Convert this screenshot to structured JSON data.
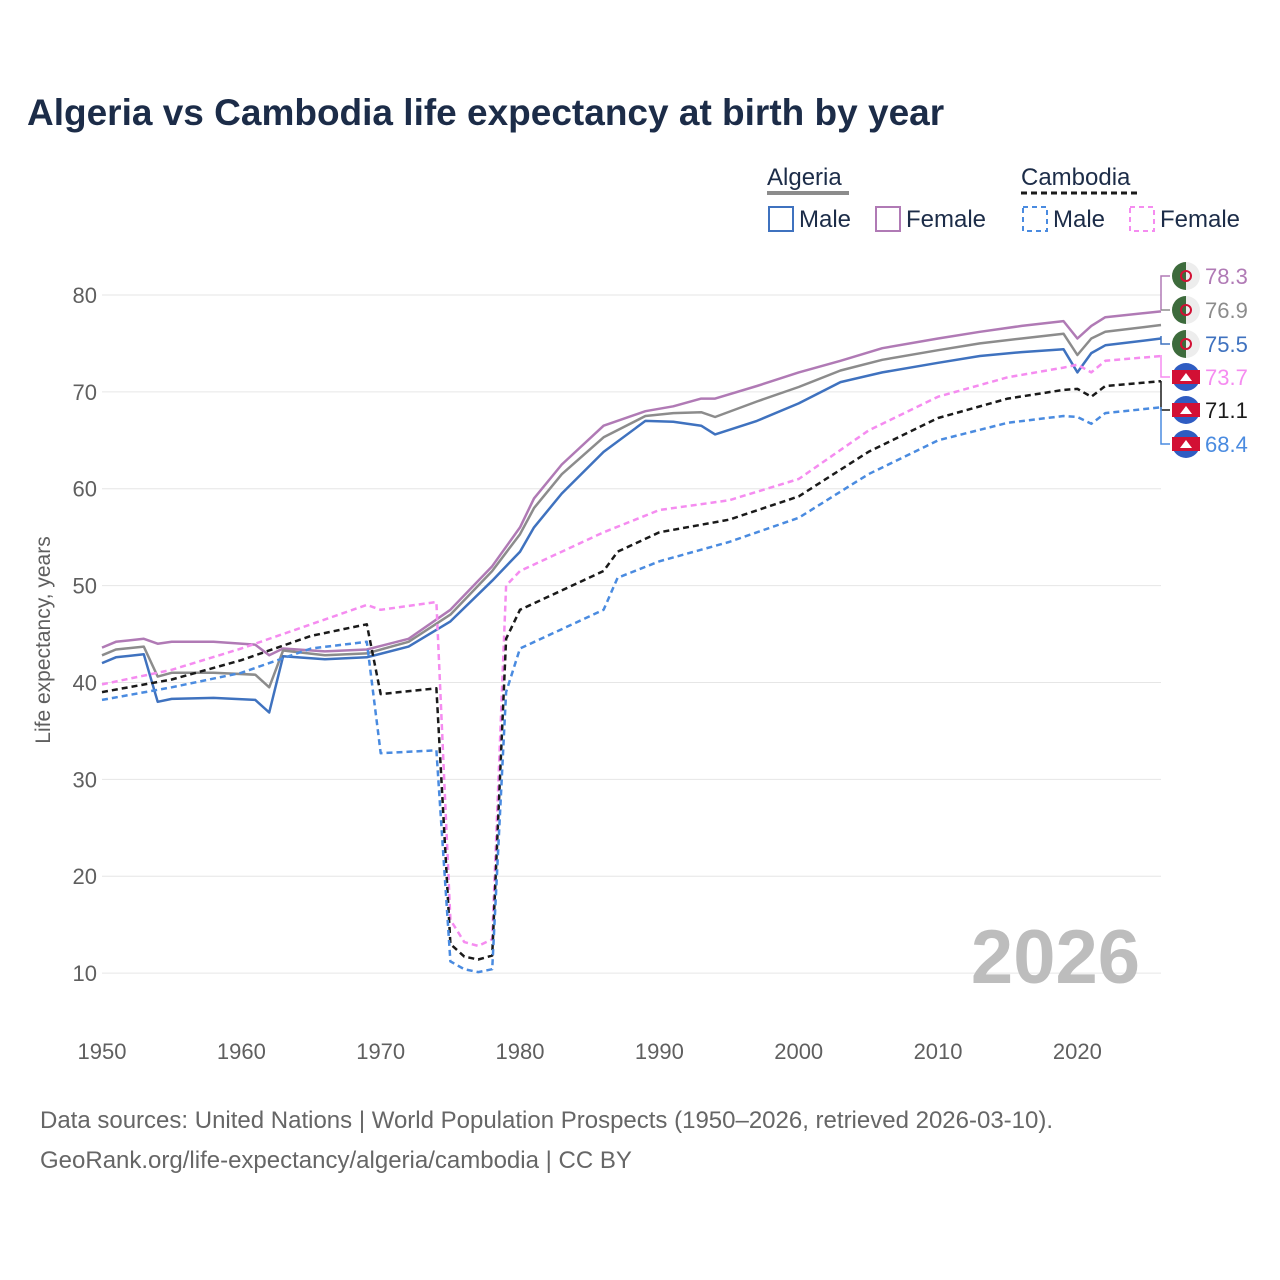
{
  "title": "Algeria vs Cambodia life expectancy at birth by year",
  "footer": {
    "source": "Data sources: United Nations | World Population Prospects (1950–2026, retrieved 2026-03-10).",
    "url": "GeoRank.org/life-expectancy/algeria/cambodia | CC BY"
  },
  "legend": {
    "groups": [
      {
        "label": "Algeria",
        "male_label": "Male",
        "female_label": "Female"
      },
      {
        "label": "Cambodia",
        "male_label": "Male",
        "female_label": "Female"
      }
    ]
  },
  "year_watermark": "2026",
  "colors": {
    "algeria_total": "#8c8c8c",
    "algeria_male": "#3f72bf",
    "algeria_female": "#b07ab5",
    "cambodia_total": "#1a1a1a",
    "cambodia_male": "#4a8be0",
    "cambodia_female": "#f58cf0"
  },
  "chart_data": {
    "type": "line",
    "title": "Algeria vs Cambodia life expectancy at birth by year",
    "xlabel": "",
    "ylabel": "Life expectancy, years",
    "xlim": [
      1950,
      2026
    ],
    "ylim": [
      5,
      85
    ],
    "xticks": [
      1950,
      1960,
      1970,
      1980,
      1990,
      2000,
      2010,
      2020
    ],
    "yticks": [
      10,
      20,
      30,
      40,
      50,
      60,
      70,
      80
    ],
    "legend_position": "top-right",
    "series": [
      {
        "name": "Algeria Female",
        "country": "Algeria",
        "sex": "Female",
        "style": "solid",
        "color_key": "algeria_female",
        "end_label": "78.3",
        "points": [
          [
            1950,
            43.6
          ],
          [
            1951,
            44.2
          ],
          [
            1953,
            44.5
          ],
          [
            1954,
            44.0
          ],
          [
            1955,
            44.2
          ],
          [
            1958,
            44.2
          ],
          [
            1961,
            43.9
          ],
          [
            1962,
            42.8
          ],
          [
            1963,
            43.5
          ],
          [
            1966,
            43.2
          ],
          [
            1969,
            43.4
          ],
          [
            1972,
            44.5
          ],
          [
            1975,
            47.5
          ],
          [
            1978,
            52.0
          ],
          [
            1980,
            56.0
          ],
          [
            1981,
            59.0
          ],
          [
            1983,
            62.5
          ],
          [
            1986,
            66.5
          ],
          [
            1989,
            68.0
          ],
          [
            1991,
            68.5
          ],
          [
            1993,
            69.3
          ],
          [
            1994,
            69.3
          ],
          [
            1997,
            70.6
          ],
          [
            2000,
            72.0
          ],
          [
            2003,
            73.2
          ],
          [
            2006,
            74.5
          ],
          [
            2010,
            75.5
          ],
          [
            2013,
            76.2
          ],
          [
            2016,
            76.8
          ],
          [
            2019,
            77.3
          ],
          [
            2020,
            75.5
          ],
          [
            2021,
            76.8
          ],
          [
            2022,
            77.7
          ],
          [
            2026,
            78.3
          ]
        ]
      },
      {
        "name": "Algeria Total",
        "country": "Algeria",
        "sex": "Total",
        "style": "solid",
        "color_key": "algeria_total",
        "end_label": "76.9",
        "points": [
          [
            1950,
            42.8
          ],
          [
            1951,
            43.4
          ],
          [
            1953,
            43.7
          ],
          [
            1954,
            40.6
          ],
          [
            1955,
            41.0
          ],
          [
            1958,
            41.0
          ],
          [
            1961,
            40.8
          ],
          [
            1962,
            39.5
          ],
          [
            1963,
            43.3
          ],
          [
            1966,
            42.8
          ],
          [
            1969,
            43.0
          ],
          [
            1972,
            44.2
          ],
          [
            1975,
            47.0
          ],
          [
            1978,
            51.5
          ],
          [
            1980,
            55.3
          ],
          [
            1981,
            58.0
          ],
          [
            1983,
            61.5
          ],
          [
            1986,
            65.3
          ],
          [
            1989,
            67.5
          ],
          [
            1991,
            67.8
          ],
          [
            1993,
            67.9
          ],
          [
            1994,
            67.4
          ],
          [
            1997,
            69.0
          ],
          [
            2000,
            70.5
          ],
          [
            2003,
            72.2
          ],
          [
            2006,
            73.3
          ],
          [
            2010,
            74.3
          ],
          [
            2013,
            75.0
          ],
          [
            2016,
            75.5
          ],
          [
            2019,
            76.0
          ],
          [
            2020,
            73.8
          ],
          [
            2021,
            75.5
          ],
          [
            2022,
            76.2
          ],
          [
            2026,
            76.9
          ]
        ]
      },
      {
        "name": "Algeria Male",
        "country": "Algeria",
        "sex": "Male",
        "style": "solid",
        "color_key": "algeria_male",
        "end_label": "75.5",
        "points": [
          [
            1950,
            42.0
          ],
          [
            1951,
            42.6
          ],
          [
            1953,
            42.9
          ],
          [
            1954,
            38.0
          ],
          [
            1955,
            38.3
          ],
          [
            1958,
            38.4
          ],
          [
            1961,
            38.2
          ],
          [
            1962,
            36.9
          ],
          [
            1963,
            42.7
          ],
          [
            1966,
            42.4
          ],
          [
            1969,
            42.6
          ],
          [
            1972,
            43.7
          ],
          [
            1975,
            46.3
          ],
          [
            1978,
            50.5
          ],
          [
            1980,
            53.5
          ],
          [
            1981,
            56.0
          ],
          [
            1983,
            59.5
          ],
          [
            1986,
            63.8
          ],
          [
            1989,
            67.0
          ],
          [
            1991,
            66.9
          ],
          [
            1993,
            66.5
          ],
          [
            1994,
            65.6
          ],
          [
            1997,
            67.0
          ],
          [
            2000,
            68.8
          ],
          [
            2003,
            71.0
          ],
          [
            2006,
            72.0
          ],
          [
            2010,
            73.0
          ],
          [
            2013,
            73.7
          ],
          [
            2016,
            74.1
          ],
          [
            2019,
            74.4
          ],
          [
            2020,
            72.0
          ],
          [
            2021,
            74.0
          ],
          [
            2022,
            74.8
          ],
          [
            2026,
            75.5
          ]
        ]
      },
      {
        "name": "Cambodia Female",
        "country": "Cambodia",
        "sex": "Female",
        "style": "dashed",
        "color_key": "cambodia_female",
        "end_label": "73.7",
        "points": [
          [
            1950,
            39.8
          ],
          [
            1955,
            41.3
          ],
          [
            1960,
            43.5
          ],
          [
            1965,
            46.0
          ],
          [
            1969,
            48.0
          ],
          [
            1970,
            47.5
          ],
          [
            1974,
            48.3
          ],
          [
            1975,
            15.5
          ],
          [
            1976,
            13.2
          ],
          [
            1977,
            12.8
          ],
          [
            1978,
            13.5
          ],
          [
            1979,
            50.0
          ],
          [
            1980,
            51.5
          ],
          [
            1986,
            55.5
          ],
          [
            1990,
            57.8
          ],
          [
            1995,
            58.8
          ],
          [
            2000,
            61.0
          ],
          [
            2005,
            66.0
          ],
          [
            2010,
            69.5
          ],
          [
            2015,
            71.5
          ],
          [
            2019,
            72.5
          ],
          [
            2020,
            72.8
          ],
          [
            2021,
            72.0
          ],
          [
            2022,
            73.2
          ],
          [
            2026,
            73.7
          ]
        ]
      },
      {
        "name": "Cambodia Total",
        "country": "Cambodia",
        "sex": "Total",
        "style": "dashed",
        "color_key": "cambodia_total",
        "end_label": "71.1",
        "points": [
          [
            1950,
            39.0
          ],
          [
            1955,
            40.3
          ],
          [
            1960,
            42.3
          ],
          [
            1965,
            44.8
          ],
          [
            1969,
            46.0
          ],
          [
            1970,
            38.8
          ],
          [
            1974,
            39.4
          ],
          [
            1975,
            13.0
          ],
          [
            1976,
            11.7
          ],
          [
            1977,
            11.4
          ],
          [
            1978,
            11.8
          ],
          [
            1979,
            44.5
          ],
          [
            1980,
            47.5
          ],
          [
            1986,
            51.5
          ],
          [
            1987,
            53.5
          ],
          [
            1990,
            55.5
          ],
          [
            1995,
            56.8
          ],
          [
            2000,
            59.2
          ],
          [
            2005,
            63.8
          ],
          [
            2010,
            67.3
          ],
          [
            2015,
            69.3
          ],
          [
            2019,
            70.2
          ],
          [
            2020,
            70.3
          ],
          [
            2021,
            69.5
          ],
          [
            2022,
            70.6
          ],
          [
            2026,
            71.1
          ]
        ]
      },
      {
        "name": "Cambodia Male",
        "country": "Cambodia",
        "sex": "Male",
        "style": "dashed",
        "color_key": "cambodia_male",
        "end_label": "68.4",
        "points": [
          [
            1950,
            38.2
          ],
          [
            1955,
            39.5
          ],
          [
            1960,
            41.0
          ],
          [
            1965,
            43.5
          ],
          [
            1969,
            44.2
          ],
          [
            1970,
            32.7
          ],
          [
            1974,
            33.0
          ],
          [
            1975,
            11.2
          ],
          [
            1976,
            10.4
          ],
          [
            1977,
            10.1
          ],
          [
            1978,
            10.4
          ],
          [
            1979,
            39.0
          ],
          [
            1980,
            43.5
          ],
          [
            1986,
            47.5
          ],
          [
            1987,
            50.8
          ],
          [
            1990,
            52.5
          ],
          [
            1995,
            54.5
          ],
          [
            2000,
            57.0
          ],
          [
            2005,
            61.5
          ],
          [
            2010,
            65.0
          ],
          [
            2015,
            66.8
          ],
          [
            2019,
            67.5
          ],
          [
            2020,
            67.4
          ],
          [
            2021,
            66.7
          ],
          [
            2022,
            67.8
          ],
          [
            2026,
            68.4
          ]
        ]
      }
    ]
  }
}
